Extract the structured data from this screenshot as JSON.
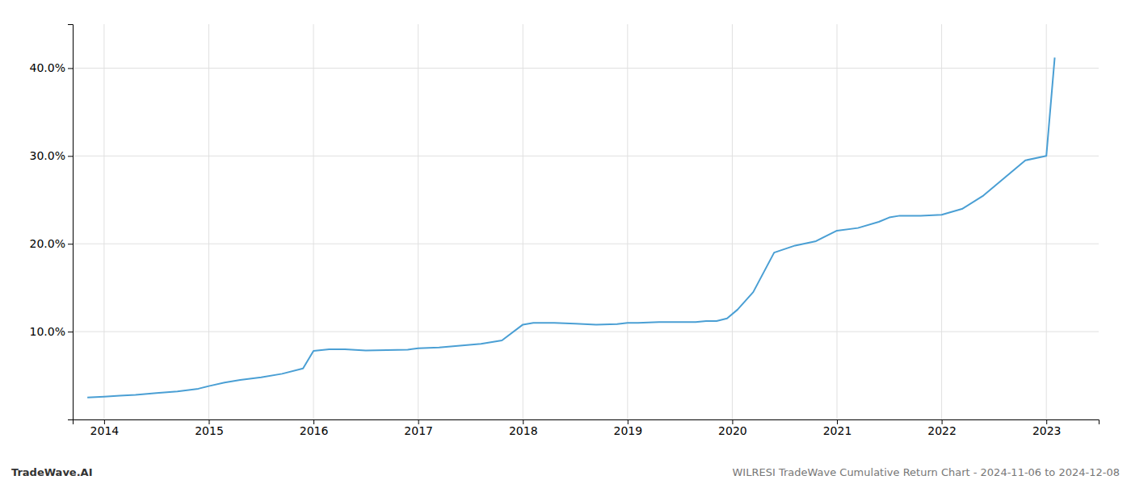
{
  "chart_data": {
    "type": "line",
    "title": "WILRESI TradeWave Cumulative Return Chart - 2024-11-06 to 2024-12-08",
    "annotations": [
      "TradeWave.AI"
    ],
    "x": [
      2013.84,
      2014.0,
      2014.15,
      2014.3,
      2014.5,
      2014.7,
      2014.9,
      2015.0,
      2015.15,
      2015.3,
      2015.5,
      2015.7,
      2015.9,
      2016.0,
      2016.15,
      2016.3,
      2016.5,
      2016.7,
      2016.9,
      2017.0,
      2017.2,
      2017.4,
      2017.6,
      2017.8,
      2018.0,
      2018.1,
      2018.3,
      2018.5,
      2018.7,
      2018.9,
      2019.0,
      2019.1,
      2019.3,
      2019.5,
      2019.65,
      2019.75,
      2019.85,
      2019.95,
      2020.05,
      2020.2,
      2020.4,
      2020.6,
      2020.8,
      2021.0,
      2021.2,
      2021.4,
      2021.5,
      2021.6,
      2021.8,
      2022.0,
      2022.2,
      2022.4,
      2022.6,
      2022.8,
      2023.0,
      2023.08
    ],
    "values": [
      2.5,
      2.6,
      2.7,
      2.8,
      3.0,
      3.2,
      3.5,
      3.8,
      4.2,
      4.5,
      4.8,
      5.2,
      5.8,
      7.8,
      8.0,
      8.0,
      7.85,
      7.9,
      7.95,
      8.1,
      8.2,
      8.4,
      8.6,
      9.0,
      10.8,
      11.0,
      11.0,
      10.9,
      10.8,
      10.85,
      11.0,
      11.0,
      11.1,
      11.1,
      11.1,
      11.2,
      11.2,
      11.5,
      12.5,
      14.5,
      19.0,
      19.8,
      20.3,
      21.5,
      21.8,
      22.5,
      23.0,
      23.2,
      23.2,
      23.3,
      24.0,
      25.5,
      27.5,
      29.5,
      30.0,
      41.2
    ],
    "color": "#4a9fd4",
    "xlim": [
      2013.7,
      2023.5
    ],
    "xticks": [
      2014,
      2015,
      2016,
      2017,
      2018,
      2019,
      2020,
      2021,
      2022,
      2023
    ],
    "ylim": [
      0,
      45
    ],
    "yticks": [
      {
        "value": 10.0,
        "label": "10.0%"
      },
      {
        "value": 20.0,
        "label": "20.0%"
      },
      {
        "value": 30.0,
        "label": "30.0%"
      },
      {
        "value": 40.0,
        "label": "40.0%"
      }
    ],
    "grid": true
  }
}
